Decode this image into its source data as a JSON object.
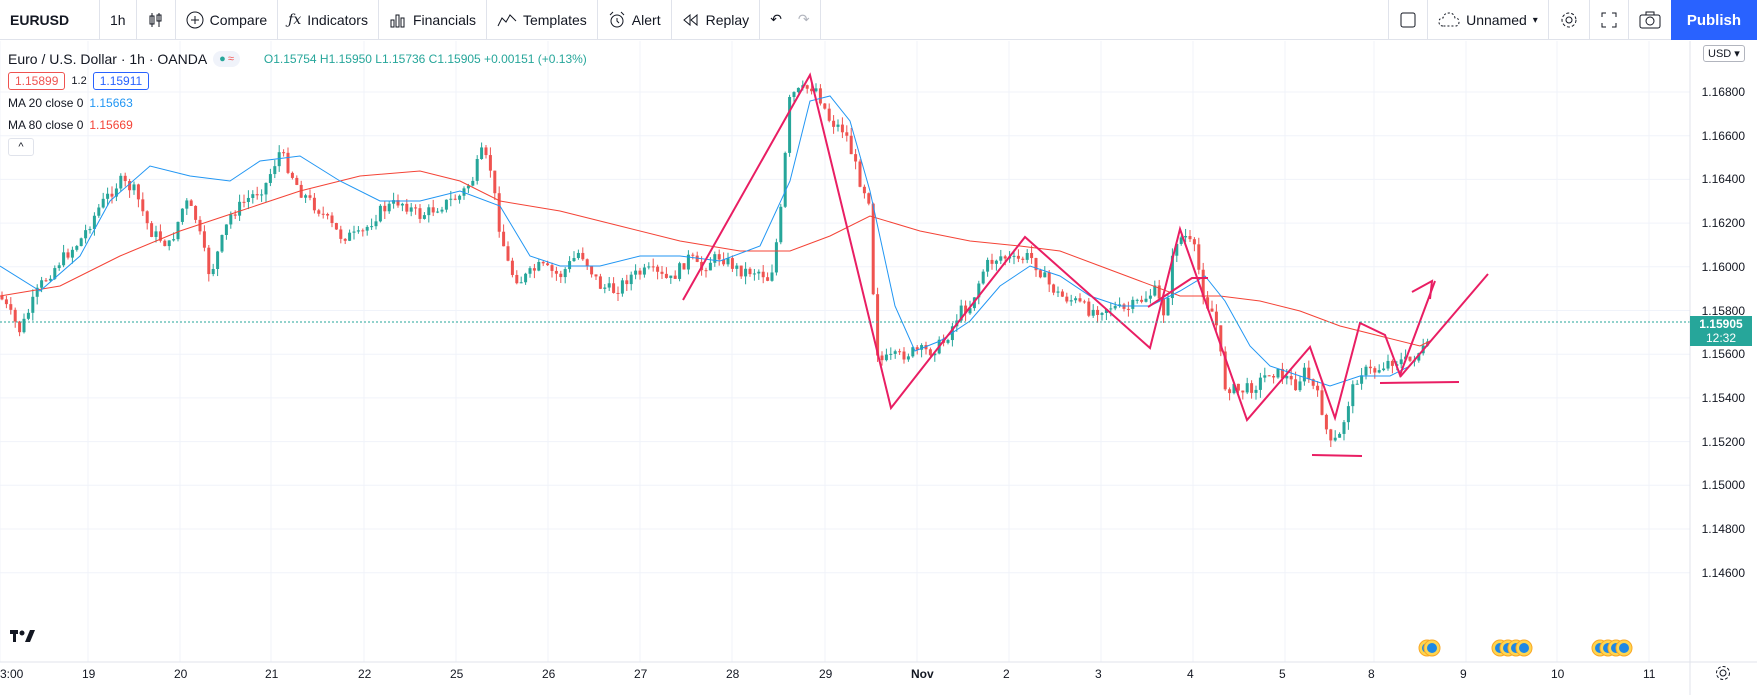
{
  "toolbar": {
    "symbol": "EURUSD",
    "interval": "1h",
    "compare": "Compare",
    "indicators": "Indicators",
    "financials": "Financials",
    "templates": "Templates",
    "alert": "Alert",
    "replay": "Replay",
    "layout_name": "Unnamed",
    "publish": "Publish"
  },
  "legend": {
    "title": "Euro / U.S. Dollar · 1h · OANDA",
    "ohlc": "O1.15754 H1.15950 L1.15736 C1.15905 +0.00151 (+0.13%)",
    "bid": "1.15899",
    "spread": "1.2",
    "ask": "1.15911",
    "ma20_label": "MA 20 close 0",
    "ma20_value": "1.15663",
    "ma80_label": "MA 80 close 0",
    "ma80_value": "1.15669",
    "collapse": "^"
  },
  "price_axis": {
    "currency": "USD",
    "ticks": [
      "1.16800",
      "1.16600",
      "1.16400",
      "1.16200",
      "1.16000",
      "1.15800",
      "1.15600",
      "1.15400",
      "1.15200",
      "1.15000",
      "1.14800",
      "1.14600"
    ],
    "current_price": "1.15905",
    "countdown": "12:32"
  },
  "time_axis": {
    "ticks": [
      "3:00",
      "19",
      "20",
      "21",
      "22",
      "25",
      "26",
      "27",
      "28",
      "29",
      "Nov",
      "2",
      "3",
      "4",
      "5",
      "8",
      "9",
      "10",
      "11"
    ]
  },
  "colors": {
    "up": "#26a69a",
    "down": "#ef5350",
    "ma20": "#2196f3",
    "ma80": "#f44336",
    "drawing": "#e91e63",
    "accent": "#2962ff"
  }
}
